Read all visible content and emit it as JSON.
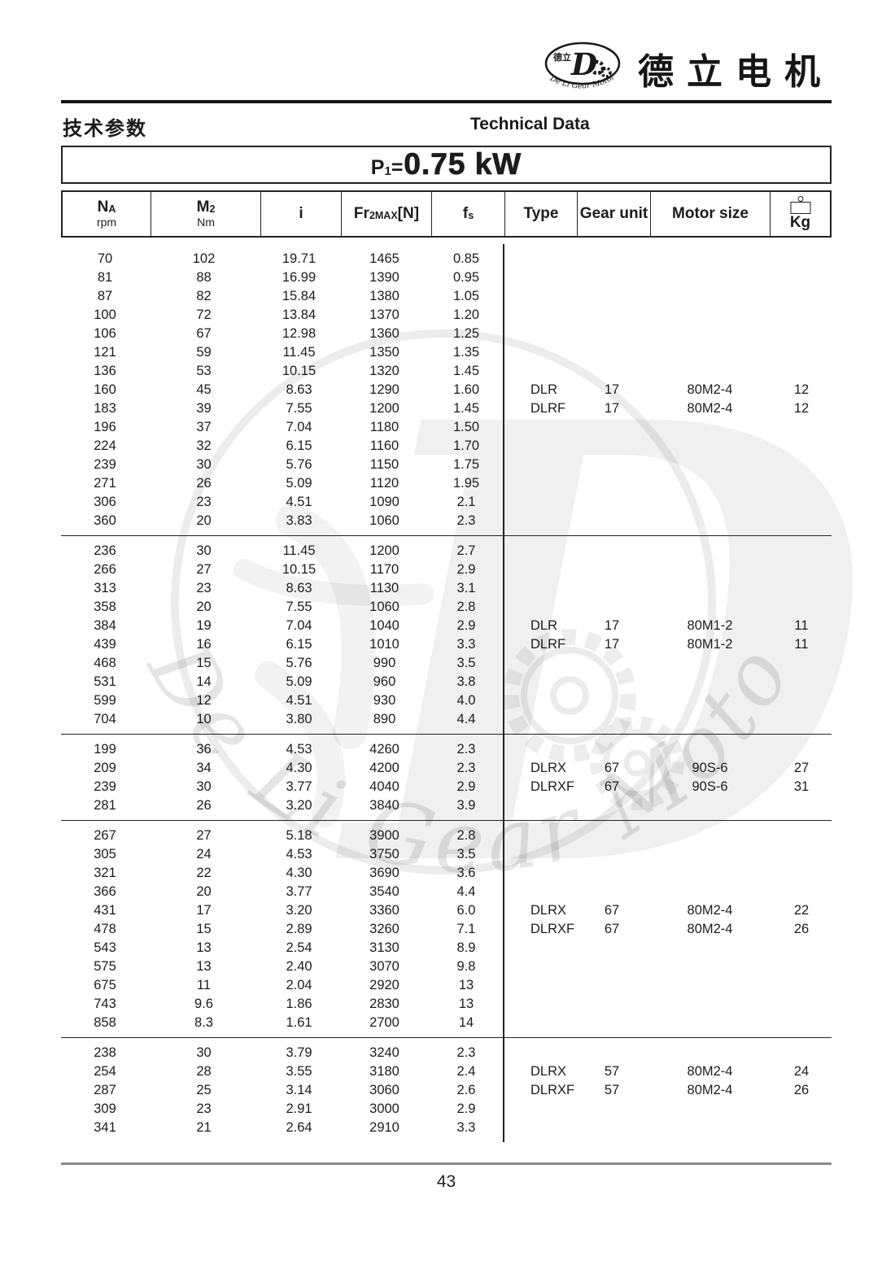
{
  "brand": {
    "logo_cn": "德立",
    "logo_subtitle": "De Li Gear Motor",
    "title_cn": "德立电机"
  },
  "page_header": {
    "left_title": "技术参数",
    "right_title": "Technical Data"
  },
  "power_title": {
    "symbol": "P",
    "symbol_sub": "1",
    "equals": "=",
    "value": "0.75 kW"
  },
  "table": {
    "columns": [
      {
        "key": "na",
        "parts": [
          {
            "t": "N"
          },
          {
            "t": "A",
            "s": 1
          }
        ],
        "unit": "rpm"
      },
      {
        "key": "m2",
        "parts": [
          {
            "t": "M"
          },
          {
            "t": "2",
            "s": 1
          }
        ],
        "unit": "Nm"
      },
      {
        "key": "i",
        "parts": [
          {
            "t": "i"
          }
        ]
      },
      {
        "key": "fr2max",
        "parts": [
          {
            "t": "F"
          },
          {
            "t": "r"
          },
          {
            "t": "2MAX",
            "s": 1
          },
          {
            "t": "[N]"
          }
        ]
      },
      {
        "key": "fs",
        "parts": [
          {
            "t": "f"
          },
          {
            "t": "s",
            "s": 1
          }
        ]
      },
      {
        "key": "type",
        "parts": [
          {
            "t": "Type"
          }
        ]
      },
      {
        "key": "gear-unit",
        "parts": [
          {
            "t": "Gear unit"
          }
        ]
      },
      {
        "key": "motor-size",
        "parts": [
          {
            "t": "Motor size"
          }
        ]
      },
      {
        "key": "kg",
        "parts": [
          {
            "t": "Kg"
          }
        ],
        "icon": "weight-icon"
      }
    ],
    "sections": [
      {
        "rows": [
          [
            "70",
            "102",
            "19.71",
            "1465",
            "0.85"
          ],
          [
            "81",
            "88",
            "16.99",
            "1390",
            "0.95"
          ],
          [
            "87",
            "82",
            "15.84",
            "1380",
            "1.05"
          ],
          [
            "100",
            "72",
            "13.84",
            "1370",
            "1.20"
          ],
          [
            "106",
            "67",
            "12.98",
            "1360",
            "1.25"
          ],
          [
            "121",
            "59",
            "11.45",
            "1350",
            "1.35"
          ],
          [
            "136",
            "53",
            "10.15",
            "1320",
            "1.45"
          ],
          [
            "160",
            "45",
            "8.63",
            "1290",
            "1.60"
          ],
          [
            "183",
            "39",
            "7.55",
            "1200",
            "1.45"
          ],
          [
            "196",
            "37",
            "7.04",
            "1180",
            "1.50"
          ],
          [
            "224",
            "32",
            "6.15",
            "1160",
            "1.70"
          ],
          [
            "239",
            "30",
            "5.76",
            "1150",
            "1.75"
          ],
          [
            "271",
            "26",
            "5.09",
            "1120",
            "1.95"
          ],
          [
            "306",
            "23",
            "4.51",
            "1090",
            "2.1"
          ],
          [
            "360",
            "20",
            "3.83",
            "1060",
            "2.3"
          ]
        ],
        "models": [
          {
            "type": "DLR",
            "gear_unit": "17",
            "motor_size": "80M2-4",
            "kg": "12",
            "at_row": 7
          },
          {
            "type": "DLRF",
            "gear_unit": "17",
            "motor_size": "80M2-4",
            "kg": "12",
            "at_row": 8
          }
        ]
      },
      {
        "rows": [
          [
            "236",
            "30",
            "11.45",
            "1200",
            "2.7"
          ],
          [
            "266",
            "27",
            "10.15",
            "1170",
            "2.9"
          ],
          [
            "313",
            "23",
            "8.63",
            "1130",
            "3.1"
          ],
          [
            "358",
            "20",
            "7.55",
            "1060",
            "2.8"
          ],
          [
            "384",
            "19",
            "7.04",
            "1040",
            "2.9"
          ],
          [
            "439",
            "16",
            "6.15",
            "1010",
            "3.3"
          ],
          [
            "468",
            "15",
            "5.76",
            "990",
            "3.5"
          ],
          [
            "531",
            "14",
            "5.09",
            "960",
            "3.8"
          ],
          [
            "599",
            "12",
            "4.51",
            "930",
            "4.0"
          ],
          [
            "704",
            "10",
            "3.80",
            "890",
            "4.4"
          ]
        ],
        "models": [
          {
            "type": "DLR",
            "gear_unit": "17",
            "motor_size": "80M1-2",
            "kg": "11",
            "at_row": 4
          },
          {
            "type": "DLRF",
            "gear_unit": "17",
            "motor_size": "80M1-2",
            "kg": "11",
            "at_row": 5
          }
        ]
      },
      {
        "rows": [
          [
            "199",
            "36",
            "4.53",
            "4260",
            "2.3"
          ],
          [
            "209",
            "34",
            "4.30",
            "4200",
            "2.3"
          ],
          [
            "239",
            "30",
            "3.77",
            "4040",
            "2.9"
          ],
          [
            "281",
            "26",
            "3.20",
            "3840",
            "3.9"
          ]
        ],
        "models": [
          {
            "type": "DLRX",
            "gear_unit": "67",
            "motor_size": "90S-6",
            "kg": "27",
            "at_row": 1
          },
          {
            "type": "DLRXF",
            "gear_unit": "67",
            "motor_size": "90S-6",
            "kg": "31",
            "at_row": 2
          }
        ]
      },
      {
        "rows": [
          [
            "267",
            "27",
            "5.18",
            "3900",
            "2.8"
          ],
          [
            "305",
            "24",
            "4.53",
            "3750",
            "3.5"
          ],
          [
            "321",
            "22",
            "4.30",
            "3690",
            "3.6"
          ],
          [
            "366",
            "20",
            "3.77",
            "3540",
            "4.4"
          ],
          [
            "431",
            "17",
            "3.20",
            "3360",
            "6.0"
          ],
          [
            "478",
            "15",
            "2.89",
            "3260",
            "7.1"
          ],
          [
            "543",
            "13",
            "2.54",
            "3130",
            "8.9"
          ],
          [
            "575",
            "13",
            "2.40",
            "3070",
            "9.8"
          ],
          [
            "675",
            "11",
            "2.04",
            "2920",
            "13"
          ],
          [
            "743",
            "9.6",
            "1.86",
            "2830",
            "13"
          ],
          [
            "858",
            "8.3",
            "1.61",
            "2700",
            "14"
          ]
        ],
        "models": [
          {
            "type": "DLRX",
            "gear_unit": "67",
            "motor_size": "80M2-4",
            "kg": "22",
            "at_row": 4
          },
          {
            "type": "DLRXF",
            "gear_unit": "67",
            "motor_size": "80M2-4",
            "kg": "26",
            "at_row": 5
          }
        ]
      },
      {
        "rows": [
          [
            "238",
            "30",
            "3.79",
            "3240",
            "2.3"
          ],
          [
            "254",
            "28",
            "3.55",
            "3180",
            "2.4"
          ],
          [
            "287",
            "25",
            "3.14",
            "3060",
            "2.6"
          ],
          [
            "309",
            "23",
            "2.91",
            "3000",
            "2.9"
          ],
          [
            "341",
            "21",
            "2.64",
            "2910",
            "3.3"
          ]
        ],
        "models": [
          {
            "type": "DLRX",
            "gear_unit": "57",
            "motor_size": "80M2-4",
            "kg": "24",
            "at_row": 1
          },
          {
            "type": "DLRXF",
            "gear_unit": "57",
            "motor_size": "80M2-4",
            "kg": "26",
            "at_row": 2
          }
        ]
      }
    ]
  },
  "footer": {
    "page_number": "43"
  }
}
